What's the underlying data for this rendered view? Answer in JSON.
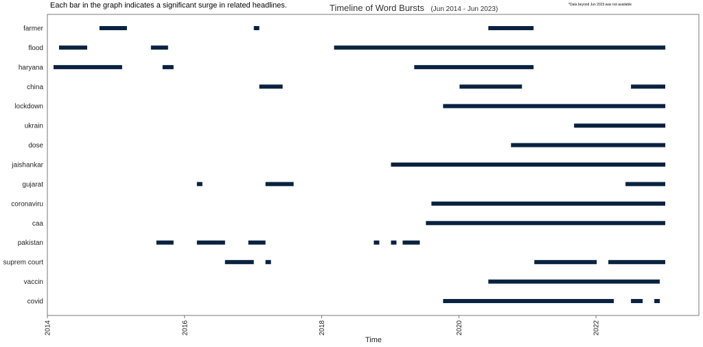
{
  "note_left": "Each bar in the graph indicates a significant surge in related headlines.",
  "note_right": "*Data beyond Jun 2023 was not available",
  "chart_data": {
    "type": "bar",
    "orientation": "horizontal-timeline",
    "title": "Timeline of Word Bursts",
    "subtitle": "(Jun 2014 - Jun 2023)",
    "xlabel": "Time",
    "ylabel": "",
    "xlim": [
      2014.0,
      2023.5
    ],
    "xticks": [
      "2014",
      "2016",
      "2018",
      "2020",
      "2022"
    ],
    "grid": false,
    "bar_color": "#0a2240",
    "categories": [
      "farmer",
      "flood",
      "haryana",
      "china",
      "lockdown",
      "ukrain",
      "dose",
      "jaishankar",
      "gujarat",
      "coronaviru",
      "caa",
      "pakistan",
      "suprem court",
      "vaccin",
      "covid"
    ],
    "series": [
      {
        "category": "farmer",
        "bursts": [
          [
            2014.76,
            2015.16
          ],
          [
            2017.01,
            2017.09
          ],
          [
            2020.43,
            2021.09
          ]
        ]
      },
      {
        "category": "flood",
        "bursts": [
          [
            2014.17,
            2014.58
          ],
          [
            2015.51,
            2015.76
          ],
          [
            2018.18,
            2023.01
          ]
        ]
      },
      {
        "category": "haryana",
        "bursts": [
          [
            2014.09,
            2015.09
          ],
          [
            2015.68,
            2015.84
          ],
          [
            2019.35,
            2021.09
          ]
        ]
      },
      {
        "category": "china",
        "bursts": [
          [
            2017.09,
            2017.43
          ],
          [
            2020.01,
            2020.92
          ],
          [
            2022.51,
            2023.01
          ]
        ]
      },
      {
        "category": "lockdown",
        "bursts": [
          [
            2019.77,
            2023.01
          ]
        ]
      },
      {
        "category": "ukrain",
        "bursts": [
          [
            2021.68,
            2023.01
          ]
        ]
      },
      {
        "category": "dose",
        "bursts": [
          [
            2020.76,
            2023.01
          ]
        ]
      },
      {
        "category": "jaishankar",
        "bursts": [
          [
            2019.01,
            2023.01
          ]
        ]
      },
      {
        "category": "gujarat",
        "bursts": [
          [
            2016.18,
            2016.26
          ],
          [
            2017.18,
            2017.59
          ],
          [
            2022.43,
            2023.01
          ]
        ]
      },
      {
        "category": "coronaviru",
        "bursts": [
          [
            2019.6,
            2023.01
          ]
        ]
      },
      {
        "category": "caa",
        "bursts": [
          [
            2019.52,
            2023.01
          ]
        ]
      },
      {
        "category": "pakistan",
        "bursts": [
          [
            2015.59,
            2015.84
          ],
          [
            2016.18,
            2016.59
          ],
          [
            2016.93,
            2017.18
          ],
          [
            2018.76,
            2018.84
          ],
          [
            2019.01,
            2019.09
          ],
          [
            2019.18,
            2019.43
          ]
        ]
      },
      {
        "category": "suprem court",
        "bursts": [
          [
            2016.59,
            2017.01
          ],
          [
            2017.18,
            2017.26
          ],
          [
            2021.1,
            2022.01
          ],
          [
            2022.18,
            2023.01
          ]
        ]
      },
      {
        "category": "vaccin",
        "bursts": [
          [
            2020.43,
            2022.93
          ]
        ]
      },
      {
        "category": "covid",
        "bursts": [
          [
            2019.77,
            2022.26
          ],
          [
            2022.51,
            2022.68
          ],
          [
            2022.85,
            2022.93
          ]
        ]
      }
    ]
  }
}
